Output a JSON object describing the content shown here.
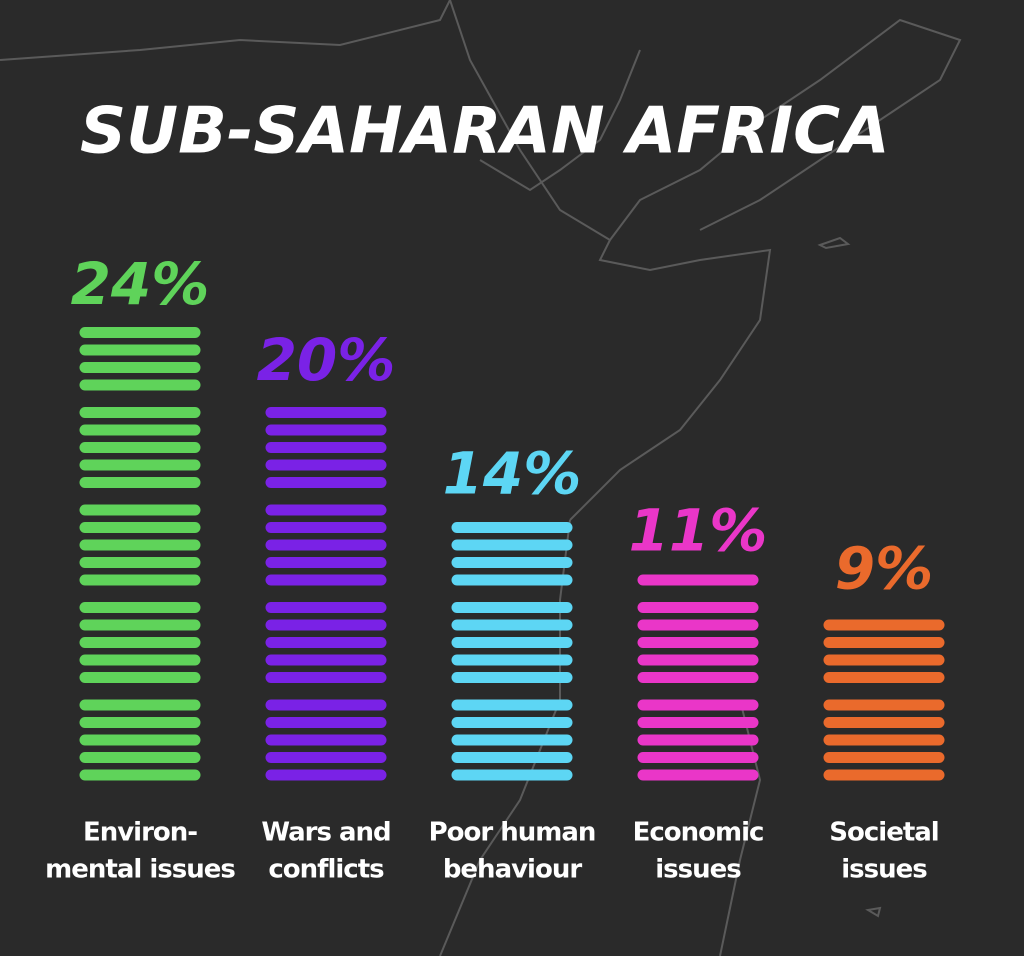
{
  "chart_data": {
    "type": "bar",
    "title": "SUB-SAHARAN AFRICA",
    "categories": [
      [
        "Environ-",
        "mental issues"
      ],
      [
        "Wars and",
        "conflicts"
      ],
      [
        "Poor human",
        "behaviour"
      ],
      [
        "Economic",
        "issues"
      ],
      [
        "Societal",
        "issues"
      ]
    ],
    "values": [
      24,
      20,
      14,
      11,
      9
    ],
    "value_labels": [
      "24%",
      "20%",
      "14%",
      "11%",
      "9%"
    ],
    "colors": [
      "#5fd35a",
      "#7a22e6",
      "#5dd6f4",
      "#ea36c8",
      "#ea6a2c"
    ],
    "ylim": [
      0,
      24
    ]
  }
}
